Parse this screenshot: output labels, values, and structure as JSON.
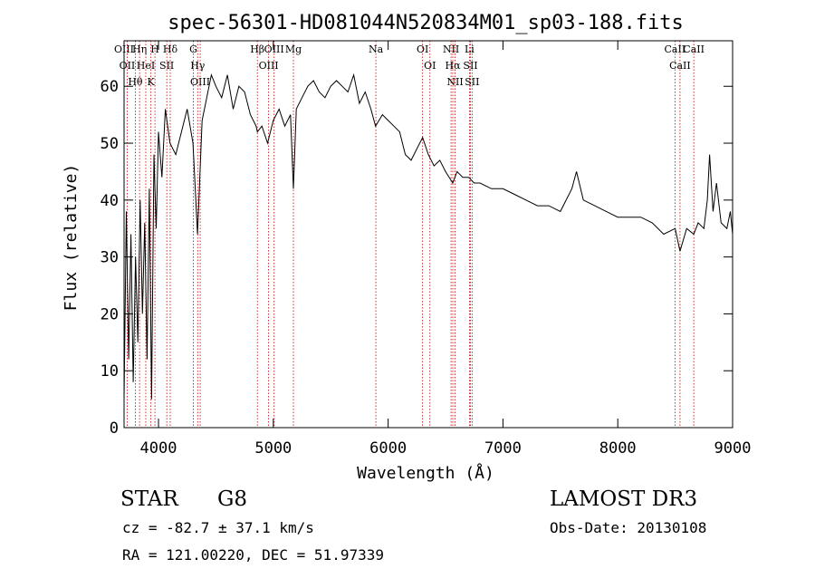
{
  "chart_data": {
    "type": "line",
    "title": "spec-56301-HD081044N520834M01_sp03-188.fits",
    "xlabel": "Wavelength (Å)",
    "ylabel": "Flux (relative)",
    "xlim": [
      3700,
      9000
    ],
    "ylim": [
      0,
      68
    ],
    "x_ticks": [
      4000,
      5000,
      6000,
      7000,
      8000,
      9000
    ],
    "y_ticks": [
      0,
      10,
      20,
      30,
      40,
      50,
      60
    ],
    "grid": false,
    "series": [
      {
        "x": [
          3700,
          3720,
          3740,
          3760,
          3780,
          3800,
          3820,
          3840,
          3860,
          3880,
          3900,
          3920,
          3940,
          3960,
          3980,
          4000,
          4030,
          4060,
          4100,
          4150,
          4200,
          4250,
          4300,
          4340,
          4380,
          4420,
          4460,
          4500,
          4550,
          4600,
          4650,
          4700,
          4750,
          4800,
          4850,
          4861,
          4900,
          4950,
          5000,
          5050,
          5100,
          5150,
          5175,
          5200,
          5250,
          5300,
          5350,
          5400,
          5450,
          5500,
          5550,
          5600,
          5650,
          5700,
          5750,
          5800,
          5850,
          5890,
          5950,
          6000,
          6050,
          6100,
          6150,
          6200,
          6250,
          6300,
          6350,
          6400,
          6450,
          6500,
          6563,
          6600,
          6650,
          6700,
          6750,
          6800,
          6900,
          7000,
          7100,
          7200,
          7300,
          7400,
          7500,
          7600,
          7640,
          7700,
          7800,
          7900,
          8000,
          8100,
          8200,
          8300,
          8400,
          8500,
          8542,
          8600,
          8662,
          8700,
          8750,
          8780,
          8800,
          8830,
          8860,
          8900,
          8950,
          8980,
          9000
        ],
        "y": [
          5,
          38,
          12,
          34,
          8,
          30,
          15,
          40,
          20,
          36,
          12,
          42,
          5,
          48,
          35,
          52,
          44,
          56,
          50,
          48,
          52,
          56,
          50,
          34,
          54,
          58,
          62,
          60,
          58,
          62,
          56,
          60,
          59,
          55,
          53,
          52,
          53,
          50,
          54,
          56,
          53,
          55,
          42,
          56,
          58,
          60,
          61,
          59,
          58,
          60,
          61,
          60,
          59,
          62,
          57,
          59,
          56,
          53,
          55,
          54,
          53,
          52,
          48,
          47,
          49,
          51,
          48,
          46,
          47,
          45,
          43,
          45,
          44,
          44,
          43,
          43,
          42,
          42,
          41,
          40,
          39,
          39,
          38,
          42,
          45,
          40,
          39,
          38,
          37,
          37,
          37,
          36,
          34,
          35,
          31,
          35,
          34,
          36,
          35,
          40,
          48,
          38,
          43,
          36,
          35,
          38,
          34
        ]
      }
    ],
    "lines": [
      {
        "label": "Hθ",
        "wavelength": 3798
      },
      {
        "label": "OII",
        "wavelength": 3727
      },
      {
        "label": "OIII",
        "wavelength": 3700
      },
      {
        "label": "HeI",
        "wavelength": 3889
      },
      {
        "label": "Hη",
        "wavelength": 3835
      },
      {
        "label": "K",
        "wavelength": 3934
      },
      {
        "label": "H",
        "wavelength": 3969
      },
      {
        "label": "Hδ",
        "wavelength": 4102
      },
      {
        "label": "SII",
        "wavelength": 4072
      },
      {
        "label": "OIII",
        "wavelength": 4363
      },
      {
        "label": "Hγ",
        "wavelength": 4341
      },
      {
        "label": "G",
        "wavelength": 4304
      },
      {
        "label": "OIII",
        "wavelength": 5007
      },
      {
        "label": "OIII",
        "wavelength": 4959
      },
      {
        "label": "Hβ",
        "wavelength": 4861
      },
      {
        "label": "Mg",
        "wavelength": 5175
      },
      {
        "label": "Na",
        "wavelength": 5893
      },
      {
        "label": "OI",
        "wavelength": 6300
      },
      {
        "label": "OI",
        "wavelength": 6364
      },
      {
        "label": "Hα",
        "wavelength": 6563
      },
      {
        "label": "NII",
        "wavelength": 6548
      },
      {
        "label": "NII",
        "wavelength": 6583
      },
      {
        "label": "SII",
        "wavelength": 6717
      },
      {
        "label": "SII",
        "wavelength": 6731
      },
      {
        "label": "Li",
        "wavelength": 6708
      },
      {
        "label": "CaII",
        "wavelength": 8542
      },
      {
        "label": "CaII",
        "wavelength": 8498
      },
      {
        "label": "CaII",
        "wavelength": 8662
      }
    ],
    "colors": {
      "spectrum": "#000000",
      "lines": "#c00000"
    }
  },
  "info": {
    "class": "STAR",
    "subclass": "G8",
    "survey": "LAMOST DR3",
    "cz": "cz = -82.7 ± 37.1 km/s",
    "obs_date": "Obs-Date: 20130108",
    "radec": "RA = 121.00220, DEC =  51.97339"
  }
}
